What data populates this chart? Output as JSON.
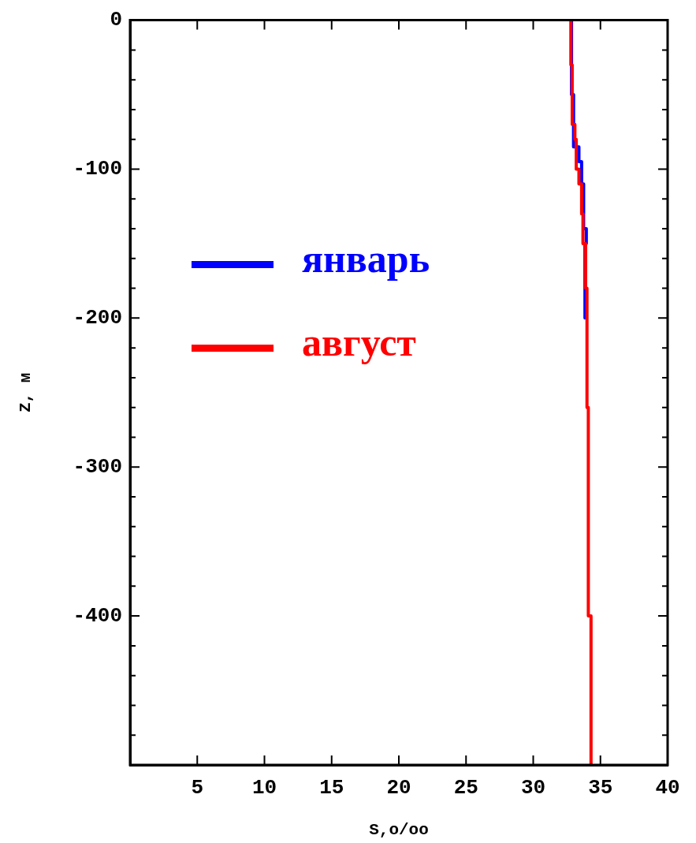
{
  "chart_data": {
    "type": "line",
    "xlabel": "S,o/oo",
    "ylabel": "Z, м",
    "xlim": [
      0,
      40
    ],
    "xticks": [
      5,
      10,
      15,
      20,
      25,
      30,
      35,
      40
    ],
    "ylim": [
      -500,
      0
    ],
    "yticks": [
      0,
      {
        "value": -20,
        "label": null
      },
      {
        "value": -40,
        "label": null
      },
      {
        "value": -60,
        "label": null
      },
      {
        "value": -80,
        "label": null
      },
      -100,
      {
        "value": -120,
        "label": null
      },
      {
        "value": -140,
        "label": null
      },
      {
        "value": -160,
        "label": null
      },
      {
        "value": -180,
        "label": null
      },
      -200,
      {
        "value": -220,
        "label": null
      },
      {
        "value": -240,
        "label": null
      },
      {
        "value": -260,
        "label": null
      },
      {
        "value": -280,
        "label": null
      },
      -300,
      {
        "value": -320,
        "label": null
      },
      {
        "value": -340,
        "label": null
      },
      {
        "value": -360,
        "label": null
      },
      {
        "value": -380,
        "label": null
      },
      -400,
      {
        "value": -420,
        "label": null
      },
      {
        "value": -440,
        "label": null
      },
      {
        "value": -460,
        "label": null
      },
      {
        "value": -480,
        "label": null
      },
      {
        "value": -500,
        "label": null
      }
    ],
    "grid": false,
    "legend": "top left",
    "marker": "none",
    "line_style": "solid",
    "series": [
      {
        "name": "январь",
        "color": "#0000ff",
        "x": [
          32.85,
          32.85,
          33.0,
          33.0,
          33.4,
          33.4,
          33.6,
          33.6,
          33.75,
          33.75,
          33.95,
          33.95,
          33.85,
          33.85
        ],
        "values": [
          0,
          -50,
          -50,
          -85,
          -85,
          -95,
          -95,
          -110,
          -110,
          -140,
          -140,
          -150,
          -150,
          -200
        ]
      },
      {
        "name": "август",
        "color": "#ff0000",
        "x": [
          32.8,
          32.8,
          32.9,
          32.9,
          33.1,
          33.1,
          33.2,
          33.2,
          33.4,
          33.4,
          33.6,
          33.6,
          33.7,
          33.7,
          33.9,
          33.9,
          34.0,
          34.0,
          34.1,
          34.1,
          34.3,
          34.3
        ],
        "values": [
          0,
          -30,
          -30,
          -70,
          -70,
          -80,
          -80,
          -100,
          -100,
          -110,
          -110,
          -130,
          -130,
          -150,
          -150,
          -180,
          -180,
          -260,
          -260,
          -400,
          -400,
          -500
        ]
      }
    ]
  }
}
